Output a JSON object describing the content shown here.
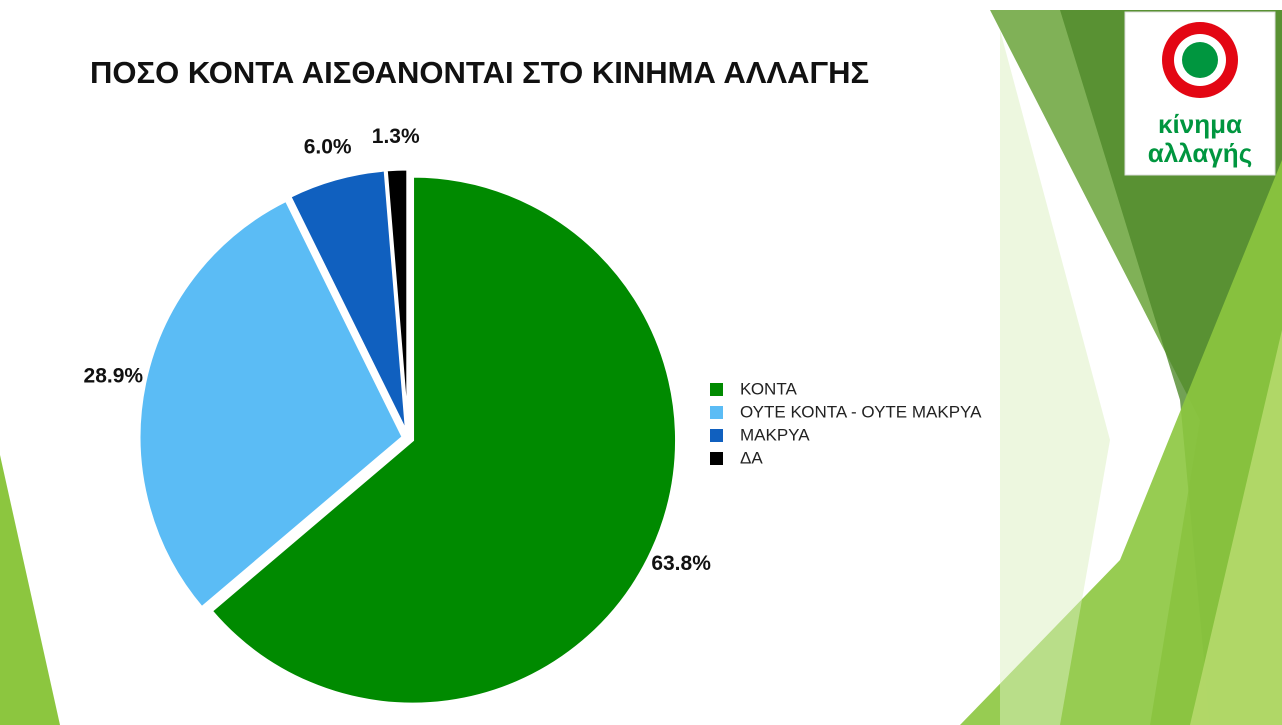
{
  "chart_data": {
    "type": "pie",
    "title": "ΠΟΣΟ ΚΟΝΤΑ ΑΙΣΘΑΝΟΝΤΑΙ ΣΤΟ ΚΙΝΗΜΑ ΑΛΛΑΓΗΣ",
    "categories": [
      "ΚΟΝΤΑ",
      "ΟΥΤΕ ΚΟΝΤΑ - ΟΥΤΕ ΜΑΚΡΥΑ",
      "ΜΑΚΡΥΑ",
      "ΔΑ"
    ],
    "values": [
      63.8,
      28.9,
      6.0,
      1.3
    ],
    "value_labels": [
      "63.8%",
      "28.9%",
      "6.0%",
      "1.3%"
    ],
    "colors": [
      "#008a00",
      "#5bbcf5",
      "#1060bf",
      "#000000"
    ],
    "legend": "right"
  },
  "logo_text": [
    "κίνημα",
    "αλλαγής"
  ]
}
